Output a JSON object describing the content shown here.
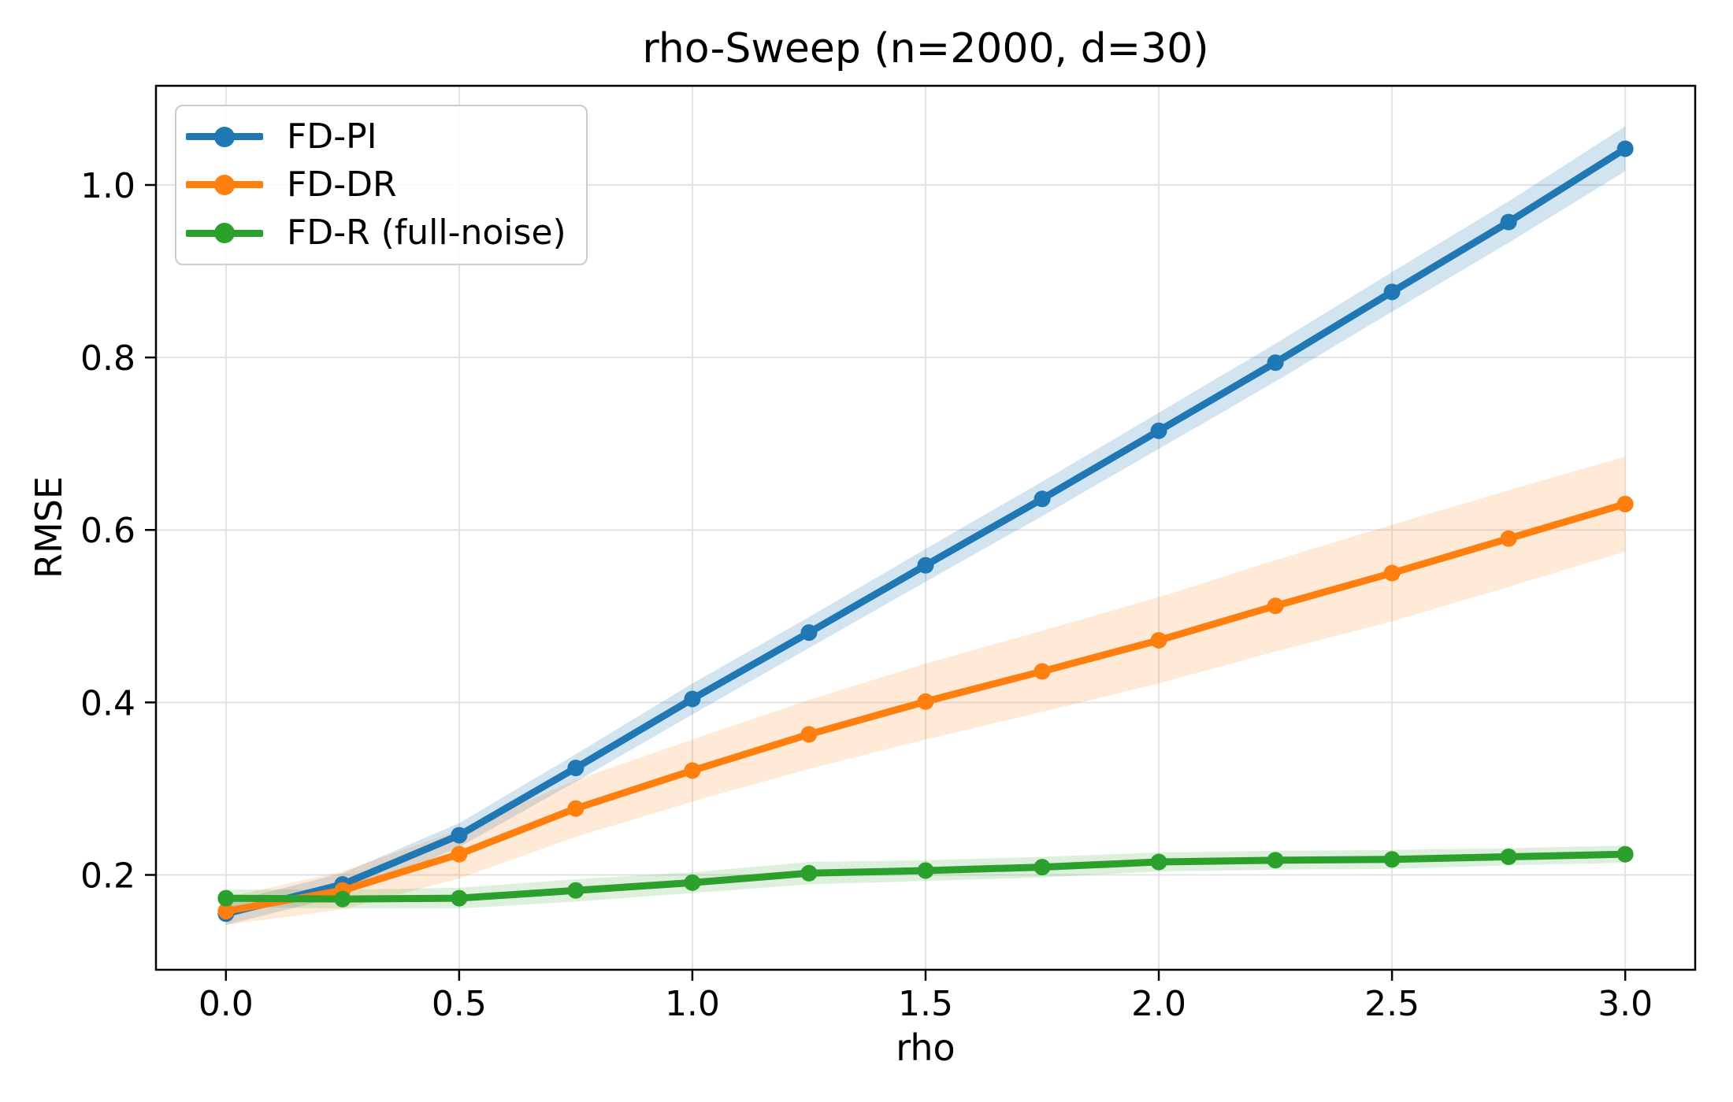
{
  "chart_data": {
    "type": "line",
    "title": "rho-Sweep (n=2000, d=30)",
    "xlabel": "rho",
    "ylabel": "RMSE",
    "x": [
      0.0,
      0.25,
      0.5,
      0.75,
      1.0,
      1.25,
      1.5,
      1.75,
      2.0,
      2.25,
      2.5,
      2.75,
      3.0
    ],
    "series": [
      {
        "name": "FD-PI",
        "color": "#1f77b4",
        "band_alpha": 0.2,
        "values": [
          0.155,
          0.189,
          0.246,
          0.324,
          0.404,
          0.481,
          0.559,
          0.636,
          0.715,
          0.794,
          0.876,
          0.957,
          1.042
        ],
        "band_halfwidth": [
          0.013,
          0.013,
          0.014,
          0.016,
          0.018,
          0.018,
          0.019,
          0.02,
          0.021,
          0.022,
          0.023,
          0.024,
          0.026
        ]
      },
      {
        "name": "FD-DR",
        "color": "#ff7f0e",
        "band_alpha": 0.16,
        "values": [
          0.158,
          0.182,
          0.224,
          0.277,
          0.321,
          0.363,
          0.401,
          0.436,
          0.472,
          0.512,
          0.55,
          0.59,
          0.63
        ],
        "band_halfwidth": [
          0.016,
          0.022,
          0.028,
          0.033,
          0.036,
          0.04,
          0.044,
          0.047,
          0.05,
          0.053,
          0.056,
          0.056,
          0.055
        ]
      },
      {
        "name": "FD-R (full-noise)",
        "color": "#2ca02c",
        "band_alpha": 0.16,
        "values": [
          0.173,
          0.172,
          0.173,
          0.182,
          0.191,
          0.202,
          0.205,
          0.209,
          0.215,
          0.217,
          0.218,
          0.221,
          0.224
        ],
        "band_halfwidth": [
          0.01,
          0.011,
          0.012,
          0.013,
          0.012,
          0.013,
          0.012,
          0.012,
          0.011,
          0.011,
          0.011,
          0.01,
          0.01
        ]
      }
    ],
    "xticks": {
      "values": [
        0.0,
        0.5,
        1.0,
        1.5,
        2.0,
        2.5,
        3.0
      ],
      "labels": [
        "0.0",
        "0.5",
        "1.0",
        "1.5",
        "2.0",
        "2.5",
        "3.0"
      ]
    },
    "yticks": {
      "values": [
        0.2,
        0.4,
        0.6,
        0.8,
        1.0
      ],
      "labels": [
        "0.2",
        "0.4",
        "0.6",
        "0.8",
        "1.0"
      ]
    },
    "xlim": [
      -0.15,
      3.15
    ],
    "ylim": [
      0.09,
      1.115
    ],
    "grid": true,
    "legend_position": "upper-left"
  },
  "styles": {
    "grid_color": "#e3e3e3",
    "spine_color": "#000000",
    "tick_color": "#000000",
    "text_color": "#000000",
    "background": "#ffffff",
    "legend_border": "#cccccc"
  }
}
